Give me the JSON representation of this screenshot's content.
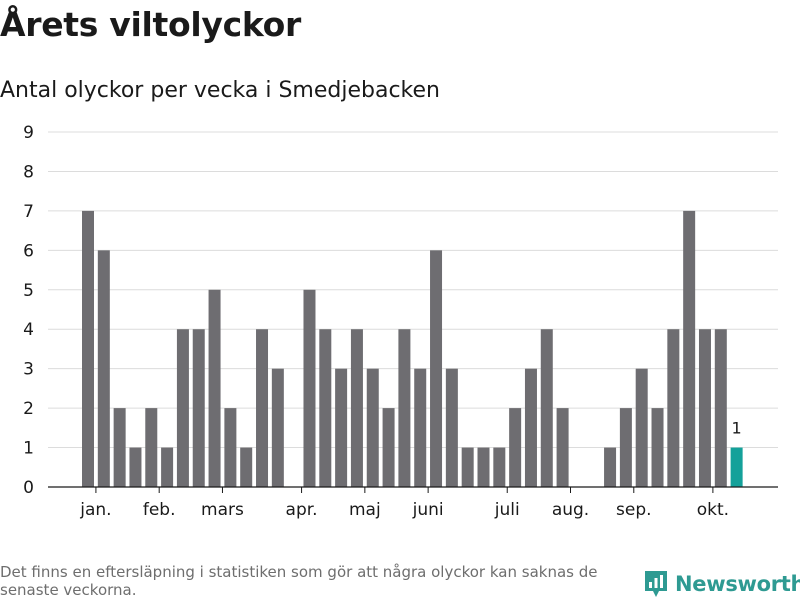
{
  "title": "Årets viltolyckor",
  "subtitle": "Antal olyckor per vecka i Smedjebacken",
  "footnote": "Det finns en eftersläpning i statistiken som gör att några olyckor kan saknas de senaste veckorna.",
  "logo": {
    "text": "Newsworthy",
    "icon": "newsworthy-logo-icon",
    "color": "#2e9a92"
  },
  "colors": {
    "bar": "#6e6d71",
    "highlight": "#14a19a",
    "grid": "#dcdcdc",
    "axis": "#1a1a1a"
  },
  "chart_data": {
    "type": "bar",
    "title": "Antal olyckor per vecka i Smedjebacken",
    "xlabel": "",
    "ylabel": "",
    "ylim": [
      0,
      9
    ],
    "yticks": [
      0,
      1,
      2,
      3,
      4,
      5,
      6,
      7,
      8,
      9
    ],
    "x": [
      1,
      2,
      3,
      4,
      5,
      6,
      7,
      8,
      9,
      10,
      11,
      12,
      13,
      14,
      15,
      16,
      17,
      18,
      19,
      20,
      21,
      22,
      23,
      24,
      25,
      26,
      27,
      28,
      29,
      30,
      31,
      32,
      33,
      34,
      35,
      36,
      37,
      38,
      39,
      40,
      41,
      42,
      43,
      44
    ],
    "values": [
      7,
      6,
      2,
      1,
      2,
      1,
      4,
      4,
      5,
      2,
      1,
      4,
      3,
      0,
      5,
      4,
      3,
      4,
      3,
      2,
      4,
      3,
      6,
      3,
      1,
      1,
      1,
      2,
      3,
      4,
      2,
      0,
      0,
      1,
      2,
      3,
      2,
      4,
      7,
      4,
      4,
      1,
      0,
      0
    ],
    "highlight_index": 41,
    "data_labels": [
      {
        "index": 41,
        "text": "1"
      }
    ],
    "month_labels": [
      {
        "label": "jan.",
        "week": 1.5
      },
      {
        "label": "feb.",
        "week": 5.5
      },
      {
        "label": "mars",
        "week": 9.5
      },
      {
        "label": "apr.",
        "week": 14.5
      },
      {
        "label": "maj",
        "week": 18.5
      },
      {
        "label": "juni",
        "week": 22.5
      },
      {
        "label": "juli",
        "week": 27.5
      },
      {
        "label": "aug.",
        "week": 31.5
      },
      {
        "label": "sep.",
        "week": 35.5
      },
      {
        "label": "okt.",
        "week": 40.5
      }
    ]
  }
}
